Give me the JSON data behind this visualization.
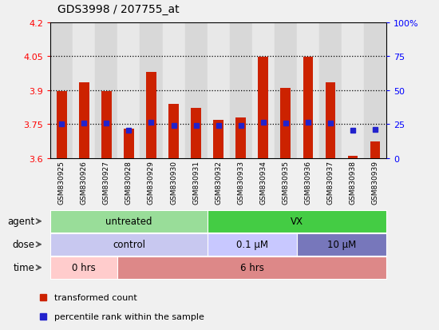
{
  "title": "GDS3998 / 207755_at",
  "samples": [
    "GSM830925",
    "GSM830926",
    "GSM830927",
    "GSM830928",
    "GSM830929",
    "GSM830930",
    "GSM830931",
    "GSM830932",
    "GSM830933",
    "GSM830934",
    "GSM830935",
    "GSM830936",
    "GSM830937",
    "GSM830938",
    "GSM830939"
  ],
  "transformed_count": [
    3.895,
    3.935,
    3.895,
    3.73,
    3.98,
    3.84,
    3.82,
    3.77,
    3.78,
    4.048,
    3.91,
    4.047,
    3.935,
    3.61,
    3.675
  ],
  "percentile_values": [
    3.751,
    3.756,
    3.756,
    3.724,
    3.758,
    3.745,
    3.745,
    3.744,
    3.745,
    3.758,
    3.756,
    3.758,
    3.756,
    3.722,
    3.728
  ],
  "ylim_left": [
    3.6,
    4.2
  ],
  "ylim_right": [
    0,
    100
  ],
  "yticks_left": [
    3.6,
    3.75,
    3.9,
    4.05,
    4.2
  ],
  "yticks_right": [
    0,
    25,
    50,
    75,
    100
  ],
  "ytick_labels_left": [
    "3.6",
    "3.75",
    "3.9",
    "4.05",
    "4.2"
  ],
  "ytick_labels_right": [
    "0",
    "25",
    "50",
    "75",
    "100%"
  ],
  "hlines": [
    3.75,
    3.9,
    4.05
  ],
  "bar_color": "#cc2200",
  "dot_color": "#2222cc",
  "col_colors": [
    "#d8d8d8",
    "#e8e8e8"
  ],
  "agent_groups": [
    {
      "label": "untreated",
      "start": 0,
      "end": 7,
      "color": "#99dd99"
    },
    {
      "label": "VX",
      "start": 7,
      "end": 15,
      "color": "#44cc44"
    }
  ],
  "dose_groups": [
    {
      "label": "control",
      "start": 0,
      "end": 7,
      "color": "#c8c8f0"
    },
    {
      "label": "0.1 μM",
      "start": 7,
      "end": 11,
      "color": "#c8c8ff"
    },
    {
      "label": "10 μM",
      "start": 11,
      "end": 15,
      "color": "#7777bb"
    }
  ],
  "time_groups": [
    {
      "label": "0 hrs",
      "start": 0,
      "end": 3,
      "color": "#ffcccc"
    },
    {
      "label": "6 hrs",
      "start": 3,
      "end": 15,
      "color": "#dd8888"
    }
  ],
  "legend_items": [
    {
      "label": "transformed count",
      "color": "#cc2200"
    },
    {
      "label": "percentile rank within the sample",
      "color": "#2222cc"
    }
  ],
  "fig_bg": "#f0f0f0"
}
